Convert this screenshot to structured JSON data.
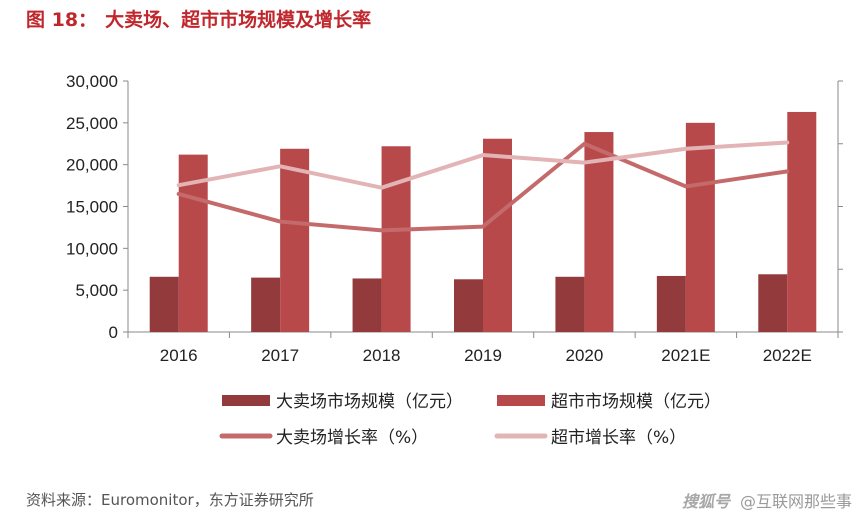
{
  "figure": {
    "label": "图 18：",
    "title": "大卖场、超市市场规模及增长率"
  },
  "source": "资料来源：Euromonitor，东方证券研究所",
  "watermark": {
    "logo": "搜狐号",
    "account": "@互联网那些事"
  },
  "colors": {
    "title": "#c0272d",
    "bar_hyper": "#933a3c",
    "bar_super": "#b8494a",
    "line_hyper": "#c46a6b",
    "line_super": "#e3b4b5",
    "axis": "#8a8a8a"
  },
  "chart_data": {
    "type": "bar",
    "title": "大卖场、超市市场规模及增长率",
    "categories": [
      "2016",
      "2017",
      "2018",
      "2019",
      "2020",
      "2021E",
      "2022E"
    ],
    "ylim": [
      0,
      30000
    ],
    "y_ticks": [
      0,
      5000,
      10000,
      15000,
      20000,
      25000,
      30000
    ],
    "y_tick_labels": [
      "0",
      "5,000",
      "10,000",
      "15,000",
      "20,000",
      "25,000",
      "30,000"
    ],
    "y2lim": [
      -10,
      10
    ],
    "y2_ticks": [
      -10,
      -5,
      0,
      5,
      10
    ],
    "y2_tick_labels": [
      "",
      "",
      "",
      "",
      ""
    ],
    "series": [
      {
        "name": "大卖场市场规模（亿元）",
        "kind": "bar",
        "axis": "left",
        "values": [
          6600,
          6500,
          6400,
          6300,
          6600,
          6700,
          6900
        ]
      },
      {
        "name": "超市市场规模（亿元）",
        "kind": "bar",
        "axis": "left",
        "values": [
          21200,
          21900,
          22200,
          23100,
          23900,
          25000,
          26300
        ]
      },
      {
        "name": "大卖场增长率（%）",
        "kind": "line",
        "axis": "right",
        "values": [
          1.0,
          -1.2,
          -1.9,
          -1.6,
          5.0,
          1.6,
          2.8
        ]
      },
      {
        "name": "超市增长率（%）",
        "kind": "line",
        "axis": "right",
        "values": [
          1.7,
          3.2,
          1.5,
          4.1,
          3.5,
          4.6,
          5.1
        ]
      }
    ],
    "legend_position": "bottom"
  }
}
